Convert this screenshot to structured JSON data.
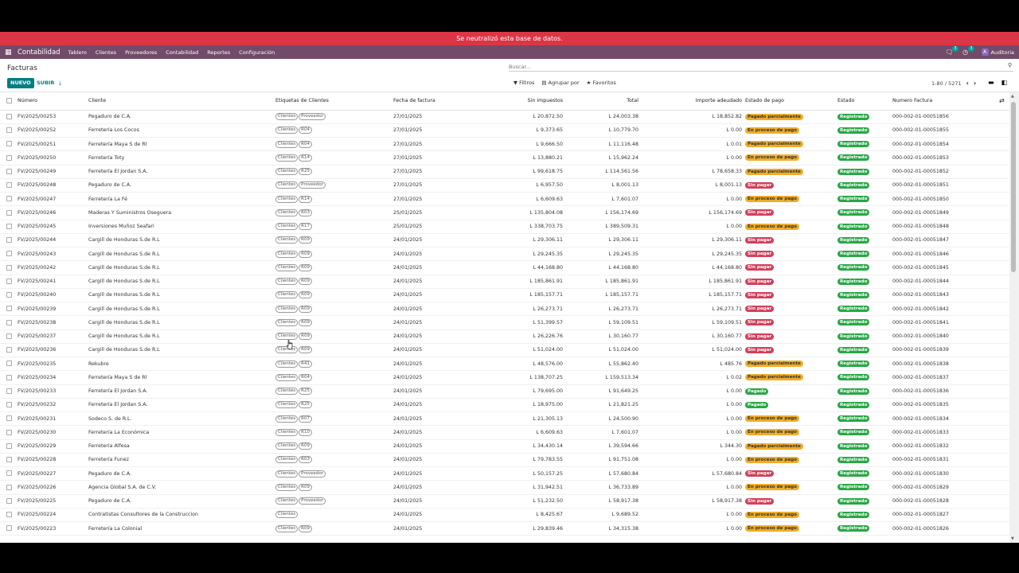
{
  "banner": "Se neutralizó esta base de datos.",
  "navbar": {
    "app_name": "Contabilidad",
    "menus": [
      "Tablero",
      "Clientes",
      "Proveedores",
      "Contabilidad",
      "Reportes",
      "Configuración"
    ],
    "messages_count": "3",
    "activities_count": "3",
    "user_initial": "A",
    "user_name": "Auditoria"
  },
  "control": {
    "title": "Facturas",
    "new_label": "NUEVO",
    "upload_label": "SUBIR",
    "search_placeholder": "Buscar...",
    "filters": "Filtros",
    "group_by": "Agrupar por",
    "favorites": "Favoritos",
    "pager": "1-80 / 5271"
  },
  "columns": [
    "Número",
    "Cliente",
    "Etiquetas de Clientes",
    "Fecha de factura",
    "Sin impuestos",
    "Total",
    "Importe adeudado",
    "Estado de pago",
    "Estado",
    "Numero Factura"
  ],
  "rows": [
    {
      "num": "FV/2025/00253",
      "client": "Pegaduro de C.A.",
      "tags": [
        "Clientes",
        "Proveedor"
      ],
      "date": "27/01/2025",
      "untaxed": "L 20,872.50",
      "total": "L 24,003.38",
      "due": "L 18,852.82",
      "pay": "Pagado parcialmente",
      "pay_class": "b-partial",
      "state": "Registrado",
      "inv": "000-002-01-00051856"
    },
    {
      "num": "FV/2025/00252",
      "client": "Ferretería Los Cocos",
      "tags": [
        "Clientes",
        "R04"
      ],
      "date": "27/01/2025",
      "untaxed": "L 9,373.65",
      "total": "L 10,779.70",
      "due": "L 0.00",
      "pay": "En proceso de pago",
      "pay_class": "b-process",
      "state": "Registrado",
      "inv": "000-002-01-00051855"
    },
    {
      "num": "FV/2025/00251",
      "client": "Ferretería Maya S de Rl",
      "tags": [
        "Clientes",
        "R04"
      ],
      "date": "27/01/2025",
      "untaxed": "L 9,666.50",
      "total": "L 11,116.48",
      "due": "L 0.01",
      "pay": "Pagado parcialmente",
      "pay_class": "b-partial",
      "state": "Registrado",
      "inv": "000-002-01-00051854"
    },
    {
      "num": "FV/2025/00250",
      "client": "Ferretería Toty",
      "tags": [
        "Clientes",
        "R14"
      ],
      "date": "27/01/2025",
      "untaxed": "L 13,880.21",
      "total": "L 15,962.24",
      "due": "L 0.00",
      "pay": "En proceso de pago",
      "pay_class": "b-process",
      "state": "Registrado",
      "inv": "000-002-01-00051853"
    },
    {
      "num": "FV/2025/00249",
      "client": "Ferretería El Jordan S.A.",
      "tags": [
        "Clientes",
        "R25"
      ],
      "date": "27/01/2025",
      "untaxed": "L 99,618.75",
      "total": "L 114,561.56",
      "due": "L 78,658.33",
      "pay": "Pagado parcialmente",
      "pay_class": "b-partial",
      "state": "Registrado",
      "inv": "000-002-01-00051852"
    },
    {
      "num": "FV/2025/00248",
      "client": "Pegaduro de C.A.",
      "tags": [
        "Clientes",
        "Proveedor"
      ],
      "date": "27/01/2025",
      "untaxed": "L 6,957.50",
      "total": "L 8,001.13",
      "due": "L 8,001.13",
      "pay": "Sin pagar",
      "pay_class": "b-unpaid",
      "state": "Registrado",
      "inv": "000-002-01-00051851"
    },
    {
      "num": "FV/2025/00247",
      "client": "Ferretería La Fé",
      "tags": [
        "Clientes",
        "R14"
      ],
      "date": "27/01/2025",
      "untaxed": "L 6,609.63",
      "total": "L 7,601.07",
      "due": "L 0.00",
      "pay": "En proceso de pago",
      "pay_class": "b-process",
      "state": "Registrado",
      "inv": "000-002-01-00051850"
    },
    {
      "num": "FV/2025/00246",
      "client": "Maderas Y Suministros Oseguera",
      "tags": [
        "Clientes",
        "R03"
      ],
      "date": "25/01/2025",
      "untaxed": "L 135,804.08",
      "total": "L 156,174.69",
      "due": "L 156,174.69",
      "pay": "Sin pagar",
      "pay_class": "b-unpaid",
      "state": "Registrado",
      "inv": "000-002-01-00051849"
    },
    {
      "num": "FV/2025/00245",
      "client": "Inversiones Muñoz Seafari",
      "tags": [
        "Clientes",
        "R17"
      ],
      "date": "25/01/2025",
      "untaxed": "L 338,703.75",
      "total": "L 389,509.31",
      "due": "L 0.00",
      "pay": "En proceso de pago",
      "pay_class": "b-process",
      "state": "Registrado",
      "inv": "000-002-01-00051848"
    },
    {
      "num": "FV/2025/00244",
      "client": "Cargill de Honduras S.de R.L",
      "tags": [
        "Clientes",
        "R09"
      ],
      "date": "24/01/2025",
      "untaxed": "L 29,306.11",
      "total": "L 29,306.11",
      "due": "L 29,306.11",
      "pay": "Sin pagar",
      "pay_class": "b-unpaid",
      "state": "Registrado",
      "inv": "000-002-01-00051847"
    },
    {
      "num": "FV/2025/00243",
      "client": "Cargill de Honduras S.de R.L",
      "tags": [
        "Clientes",
        "R09"
      ],
      "date": "24/01/2025",
      "untaxed": "L 29,245.35",
      "total": "L 29,245.35",
      "due": "L 29,245.35",
      "pay": "Sin pagar",
      "pay_class": "b-unpaid",
      "state": "Registrado",
      "inv": "000-002-01-00051846"
    },
    {
      "num": "FV/2025/00242",
      "client": "Cargill de Honduras S.de R.L",
      "tags": [
        "Clientes",
        "R09"
      ],
      "date": "24/01/2025",
      "untaxed": "L 44,168.80",
      "total": "L 44,168.80",
      "due": "L 44,168.80",
      "pay": "Sin pagar",
      "pay_class": "b-unpaid",
      "state": "Registrado",
      "inv": "000-002-01-00051845"
    },
    {
      "num": "FV/2025/00241",
      "client": "Cargill de Honduras S.de R.L",
      "tags": [
        "Clientes",
        "R09"
      ],
      "date": "24/01/2025",
      "untaxed": "L 185,861.91",
      "total": "L 185,861.91",
      "due": "L 185,861.91",
      "pay": "Sin pagar",
      "pay_class": "b-unpaid",
      "state": "Registrado",
      "inv": "000-002-01-00051844"
    },
    {
      "num": "FV/2025/00240",
      "client": "Cargill de Honduras S.de R.L",
      "tags": [
        "Clientes",
        "R09"
      ],
      "date": "24/01/2025",
      "untaxed": "L 185,157.71",
      "total": "L 185,157.71",
      "due": "L 185,157.71",
      "pay": "Sin pagar",
      "pay_class": "b-unpaid",
      "state": "Registrado",
      "inv": "000-002-01-00051843"
    },
    {
      "num": "FV/2025/00239",
      "client": "Cargill de Honduras S.de R.L",
      "tags": [
        "Clientes",
        "R09"
      ],
      "date": "24/01/2025",
      "untaxed": "L 26,273.71",
      "total": "L 26,273.71",
      "due": "L 26,273.71",
      "pay": "Sin pagar",
      "pay_class": "b-unpaid",
      "state": "Registrado",
      "inv": "000-002-01-00051842"
    },
    {
      "num": "FV/2025/00238",
      "client": "Cargill de Honduras S.de R.L",
      "tags": [
        "Clientes",
        "R09"
      ],
      "date": "24/01/2025",
      "untaxed": "L 51,399.57",
      "total": "L 59,109.51",
      "due": "L 59,109.51",
      "pay": "Sin pagar",
      "pay_class": "b-unpaid",
      "state": "Registrado",
      "inv": "000-002-01-00051841"
    },
    {
      "num": "FV/2025/00237",
      "client": "Cargill de Honduras S.de R.L",
      "tags": [
        "Clientes",
        "R09"
      ],
      "date": "24/01/2025",
      "untaxed": "L 26,226.76",
      "total": "L 30,160.77",
      "due": "L 30,160.77",
      "pay": "Sin pagar",
      "pay_class": "b-unpaid",
      "state": "Registrado",
      "inv": "000-002-01-00051840"
    },
    {
      "num": "FV/2025/00236",
      "client": "Cargill de Honduras S.de R.L",
      "tags": [
        "Clientes",
        "R09"
      ],
      "date": "24/01/2025",
      "untaxed": "L 51,024.00",
      "total": "L 51,024.00",
      "due": "L 51,024.00",
      "pay": "Sin pagar",
      "pay_class": "b-unpaid",
      "state": "Registrado",
      "inv": "000-002-01-00051839"
    },
    {
      "num": "FV/2025/00235",
      "client": "Rekubre",
      "tags": [
        "Clientes",
        "R41"
      ],
      "date": "24/01/2025",
      "untaxed": "L 48,576.00",
      "total": "L 55,862.40",
      "due": "L 485.76",
      "pay": "Pagado parcialmente",
      "pay_class": "b-partial",
      "state": "Registrado",
      "inv": "000-002-01-00051838"
    },
    {
      "num": "FV/2025/00234",
      "client": "Ferretería Maya S de Rl",
      "tags": [
        "Clientes",
        "R04"
      ],
      "date": "24/01/2025",
      "untaxed": "L 138,707.25",
      "total": "L 159,513.34",
      "due": "L 0.02",
      "pay": "Pagado parcialmente",
      "pay_class": "b-partial",
      "state": "Registrado",
      "inv": "000-002-01-00051837"
    },
    {
      "num": "FV/2025/00233",
      "client": "Ferretería El Jordan S.A.",
      "tags": [
        "Clientes",
        "R25"
      ],
      "date": "24/01/2025",
      "untaxed": "L 79,695.00",
      "total": "L 91,649.25",
      "due": "L 0.00",
      "pay": "Pagado",
      "pay_class": "b-paid",
      "state": "Registrado",
      "inv": "000-002-01-00051836"
    },
    {
      "num": "FV/2025/00232",
      "client": "Ferretería El Jordan S.A.",
      "tags": [
        "Clientes",
        "R25"
      ],
      "date": "24/01/2025",
      "untaxed": "L 18,975.00",
      "total": "L 21,821.25",
      "due": "L 0.00",
      "pay": "Pagado",
      "pay_class": "b-paid",
      "state": "Registrado",
      "inv": "000-002-01-00051835"
    },
    {
      "num": "FV/2025/00231",
      "client": "Sodeco S. de R.L.",
      "tags": [
        "Clientes",
        "R07"
      ],
      "date": "24/01/2025",
      "untaxed": "L 21,305.13",
      "total": "L 24,500.90",
      "due": "L 0.00",
      "pay": "En proceso de pago",
      "pay_class": "b-process",
      "state": "Registrado",
      "inv": "000-002-01-00051834"
    },
    {
      "num": "FV/2025/00230",
      "client": "Ferretería La Económica",
      "tags": [
        "Clientes",
        "R10"
      ],
      "date": "24/01/2025",
      "untaxed": "L 6,609.63",
      "total": "L 7,601.07",
      "due": "L 0.00",
      "pay": "En proceso de pago",
      "pay_class": "b-process",
      "state": "Registrado",
      "inv": "000-002-01-00051833"
    },
    {
      "num": "FV/2025/00229",
      "client": "Ferretería Alfesa",
      "tags": [
        "Clientes",
        "R09"
      ],
      "date": "24/01/2025",
      "untaxed": "L 34,430.14",
      "total": "L 39,594.66",
      "due": "L 344.30",
      "pay": "Pagado parcialmente",
      "pay_class": "b-partial",
      "state": "Registrado",
      "inv": "000-002-01-00051832"
    },
    {
      "num": "FV/2025/00228",
      "client": "Ferretería Funez",
      "tags": [
        "Clientes",
        "R03"
      ],
      "date": "24/01/2025",
      "untaxed": "L 79,783.55",
      "total": "L 91,751.08",
      "due": "L 0.00",
      "pay": "En proceso de pago",
      "pay_class": "b-process",
      "state": "Registrado",
      "inv": "000-002-01-00051831"
    },
    {
      "num": "FV/2025/00227",
      "client": "Pegaduro de C.A.",
      "tags": [
        "Clientes",
        "Proveedor"
      ],
      "date": "24/01/2025",
      "untaxed": "L 50,157.25",
      "total": "L 57,680.84",
      "due": "L 57,680.84",
      "pay": "Sin pagar",
      "pay_class": "b-unpaid",
      "state": "Registrado",
      "inv": "000-002-01-00051830"
    },
    {
      "num": "FV/2025/00226",
      "client": "Agencia Global S.A. de C.V.",
      "tags": [
        "Clientes",
        "R09"
      ],
      "date": "24/01/2025",
      "untaxed": "L 31,942.51",
      "total": "L 36,733.89",
      "due": "L 0.00",
      "pay": "En proceso de pago",
      "pay_class": "b-process",
      "state": "Registrado",
      "inv": "000-002-01-00051829"
    },
    {
      "num": "FV/2025/00225",
      "client": "Pegaduro de C.A.",
      "tags": [
        "Clientes",
        "Proveedor"
      ],
      "date": "24/01/2025",
      "untaxed": "L 51,232.50",
      "total": "L 58,917.38",
      "due": "L 58,917.38",
      "pay": "Sin pagar",
      "pay_class": "b-unpaid",
      "state": "Registrado",
      "inv": "000-002-01-00051828"
    },
    {
      "num": "FV/2025/00224",
      "client": "Contratistas Consultores de la Construccion",
      "tags": [
        "Clientes"
      ],
      "date": "24/01/2025",
      "untaxed": "L 8,425.67",
      "total": "L 9,689.52",
      "due": "L 0.00",
      "pay": "En proceso de pago",
      "pay_class": "b-process",
      "state": "Registrado",
      "inv": "000-002-01-00051827"
    },
    {
      "num": "FV/2025/00223",
      "client": "Ferretería La Colonial",
      "tags": [
        "Clientes",
        "R09"
      ],
      "date": "24/01/2025",
      "untaxed": "L 29,839.46",
      "total": "L 34,315.38",
      "due": "L 0.00",
      "pay": "En proceso de pago",
      "pay_class": "b-process",
      "state": "Registrado",
      "inv": "000-002-01-00051826"
    }
  ],
  "colors": {
    "navbar": "#714b67",
    "banner": "#dc3545",
    "primary": "#017e84",
    "success": "#28a745",
    "warning": "#f0ad29",
    "danger": "#d23f5a"
  }
}
